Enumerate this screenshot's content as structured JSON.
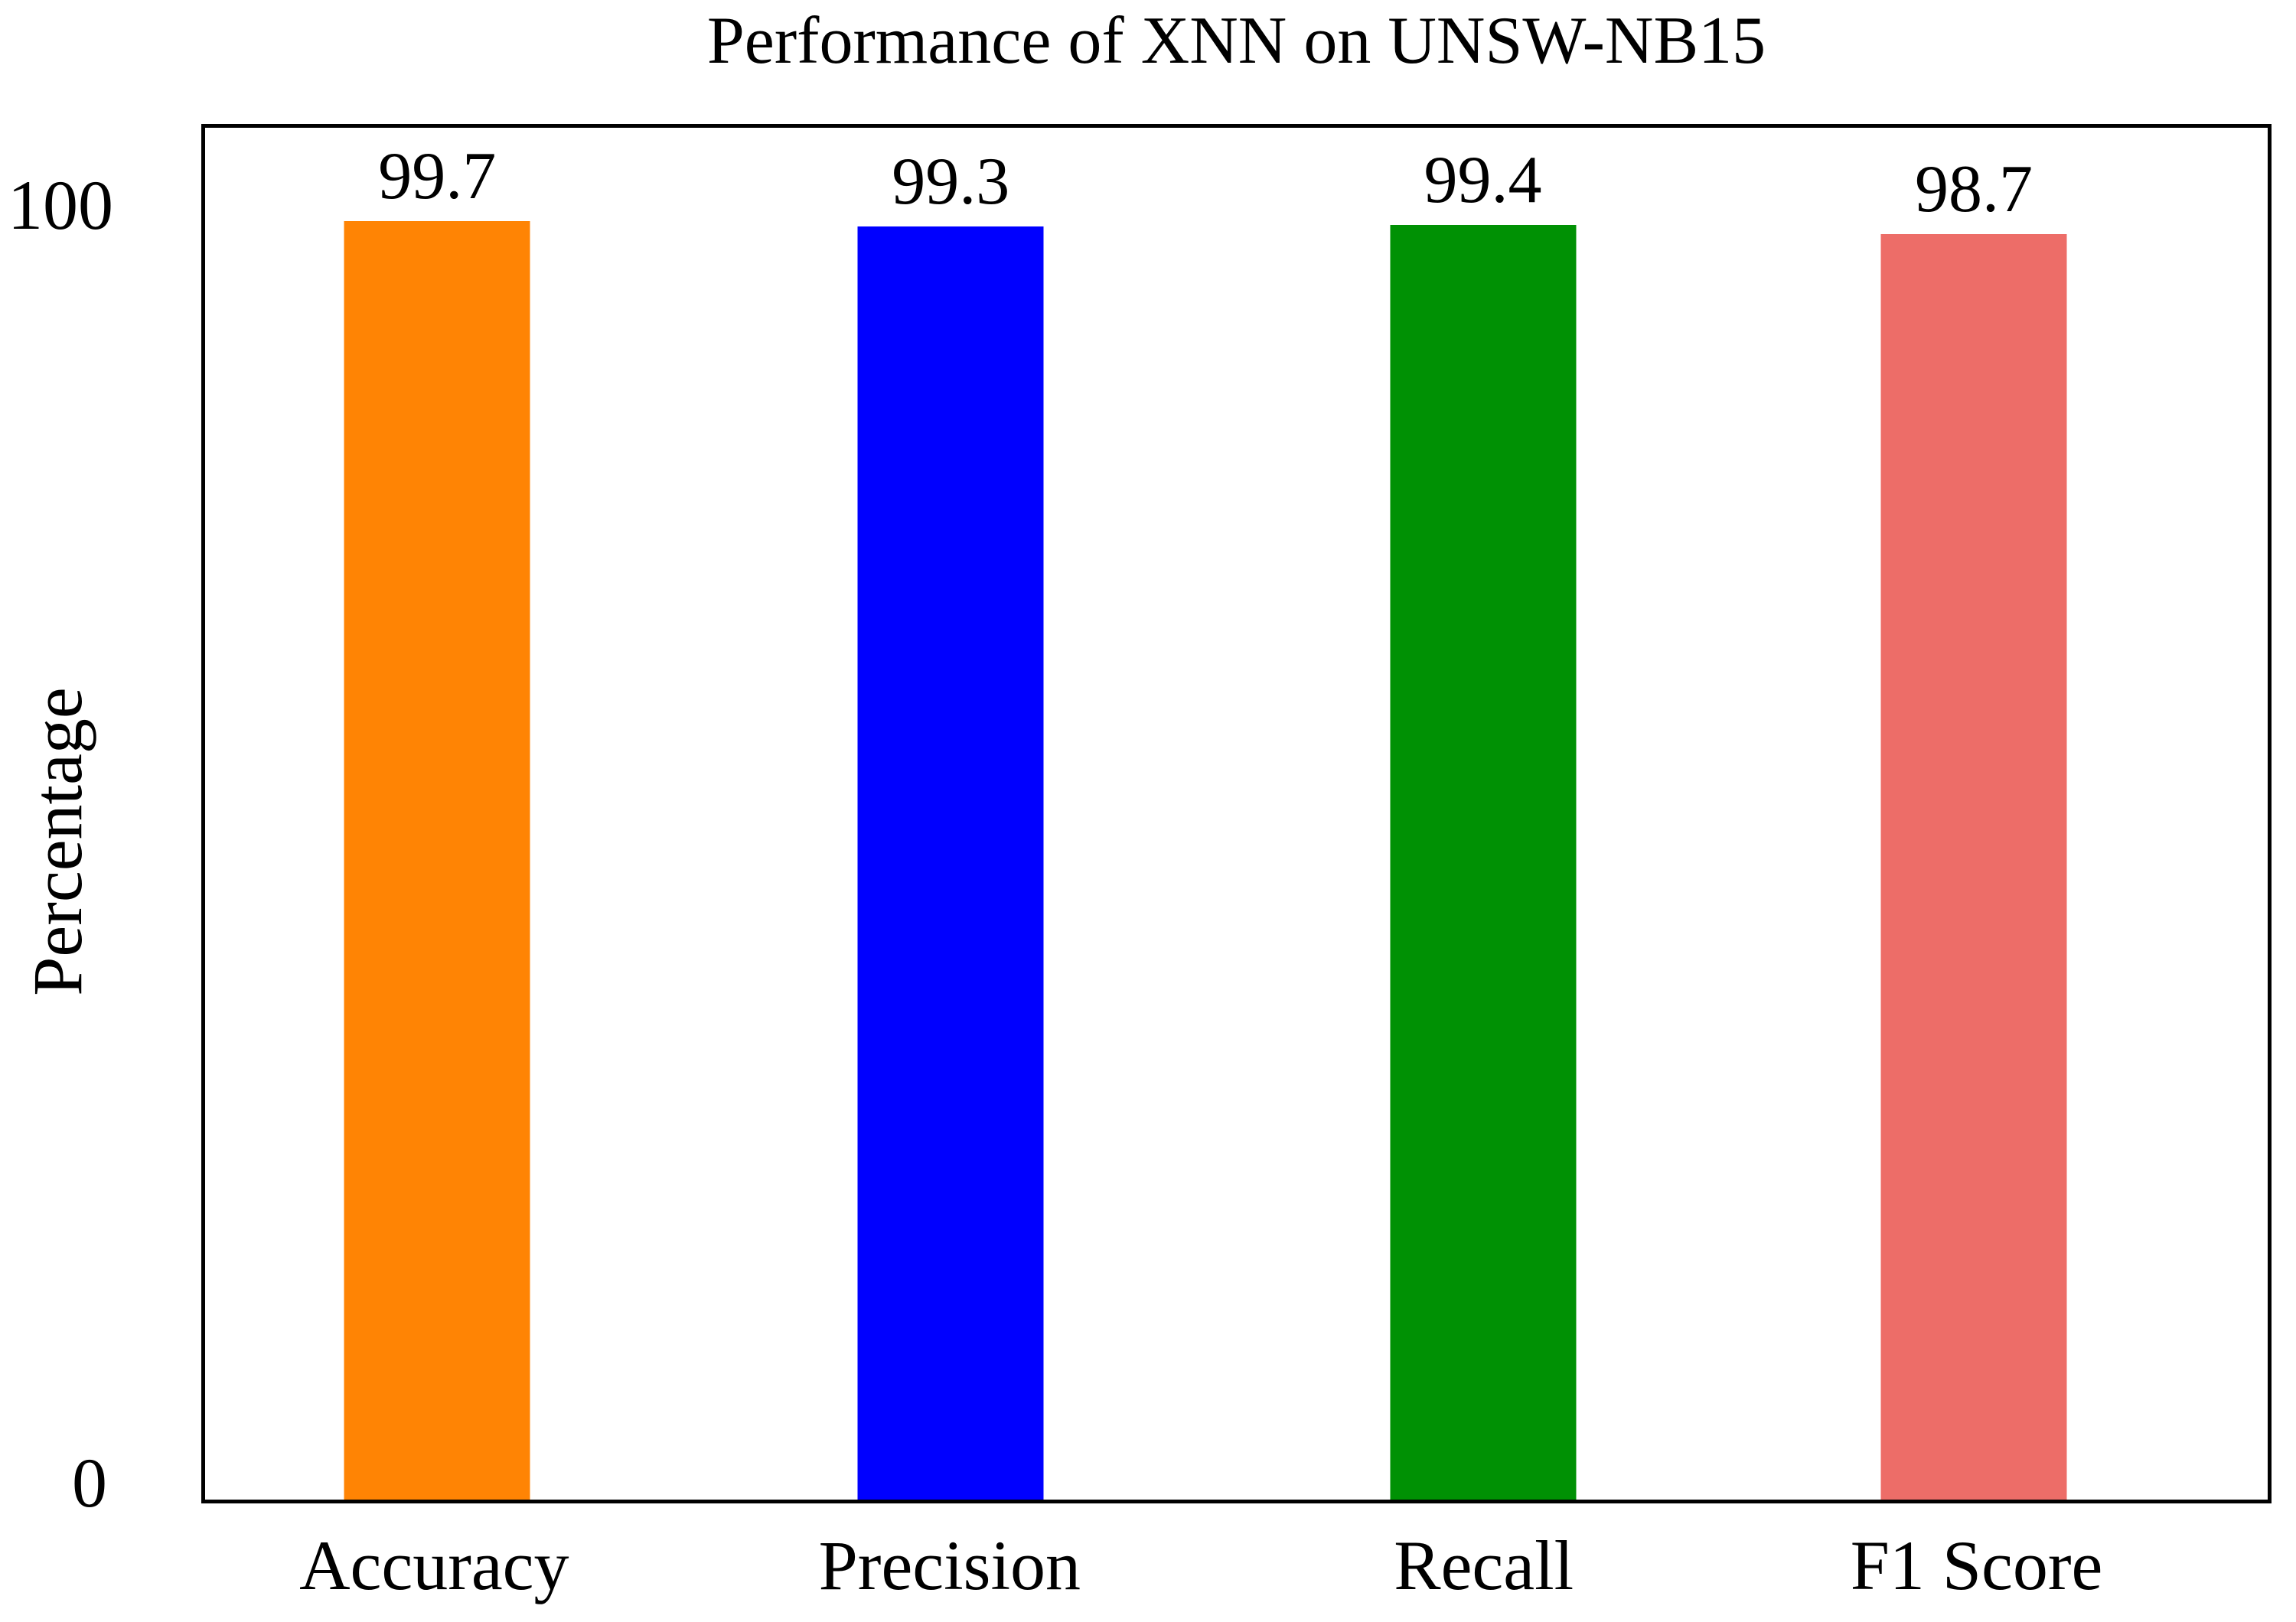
{
  "title": "Performance of XNN on UNSW-NB15",
  "y_axis": {
    "label": "Percentage",
    "tick_labels": [
      "100",
      "0"
    ]
  },
  "chart_data": {
    "type": "bar",
    "title": "Performance of XNN on UNSW-NB15",
    "categories": [
      "Accuracy",
      "Precision",
      "Recall",
      "F1 Score"
    ],
    "values": [
      99.7,
      99.3,
      99.4,
      98.7
    ],
    "value_labels": [
      "99.7",
      "99.3",
      "99.4",
      "98.7"
    ],
    "bar_colors": [
      "#FF8404",
      "#0000FF",
      "#009104",
      "#ED6D68"
    ],
    "xlabel": "",
    "ylabel": "Percentage",
    "ylim": [
      0,
      107
    ],
    "yticks": [
      0,
      100
    ],
    "grid": false,
    "legend": "none",
    "frame": "full-box",
    "value_labels_position": "above-bars"
  }
}
